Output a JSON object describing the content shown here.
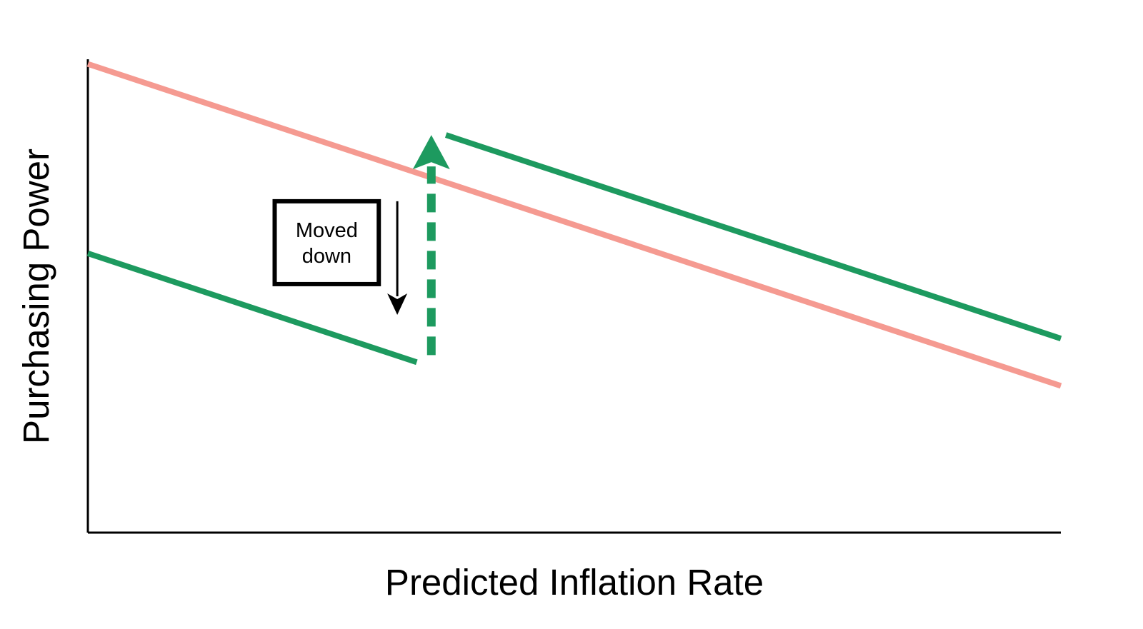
{
  "chart_data": {
    "type": "line",
    "title": "",
    "xlabel": "Predicted Inflation Rate",
    "ylabel": "Purchasing Power",
    "xlim": [
      0,
      100
    ],
    "ylim": [
      0,
      100
    ],
    "grid": false,
    "legend": "none",
    "series": [
      {
        "color": "#f59a91",
        "style": "solid",
        "x": [
          0,
          100
        ],
        "y": [
          99,
          31
        ]
      },
      {
        "color": "#1d9a5f",
        "style": "solid",
        "x": [
          0,
          33.8
        ],
        "y": [
          59,
          36
        ]
      },
      {
        "color": "#1d9a5f",
        "style": "solid",
        "x": [
          36.8,
          100
        ],
        "y": [
          84,
          41
        ]
      }
    ],
    "annotations": [
      {
        "kind": "dashed-arrow",
        "color": "#1d9a5f",
        "x": 35.3,
        "y_from": 37.5,
        "y_to": 84
      },
      {
        "kind": "arrow",
        "color": "#000000",
        "x": 31.8,
        "y_from": 70,
        "y_to": 46
      },
      {
        "kind": "label-box",
        "lines": [
          "Moved",
          "down"
        ],
        "x_left": 19.2,
        "x_right": 29.9,
        "y_top": 70,
        "y_bottom": 52.5
      }
    ]
  }
}
